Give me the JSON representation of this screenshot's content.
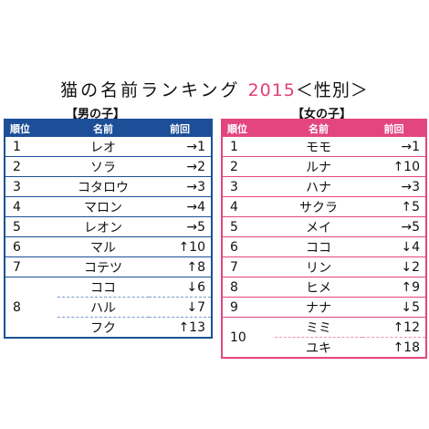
{
  "title": {
    "main": "猫の名前ランキング",
    "year": "2015",
    "sub": "＜性別＞"
  },
  "boys": {
    "label": "【男の子】",
    "headers": {
      "rank": "順位",
      "name": "名前",
      "prev": "前回"
    },
    "rows": [
      {
        "rank": "1",
        "name": "レオ",
        "prev": "→1"
      },
      {
        "rank": "2",
        "name": "ソラ",
        "prev": "→2"
      },
      {
        "rank": "3",
        "name": "コタロウ",
        "prev": "→3"
      },
      {
        "rank": "4",
        "name": "マロン",
        "prev": "→4"
      },
      {
        "rank": "5",
        "name": "レオン",
        "prev": "→5"
      },
      {
        "rank": "6",
        "name": "マル",
        "prev": "↑10"
      },
      {
        "rank": "7",
        "name": "コテツ",
        "prev": "↑8"
      },
      {
        "rank": "8",
        "name": "ココ",
        "prev": "↓6"
      },
      {
        "rank": "8",
        "name": "ハル",
        "prev": "↓7"
      },
      {
        "rank": "8",
        "name": "フク",
        "prev": "↑13"
      }
    ]
  },
  "girls": {
    "label": "【女の子】",
    "headers": {
      "rank": "順位",
      "name": "名前",
      "prev": "前回"
    },
    "rows": [
      {
        "rank": "1",
        "name": "モモ",
        "prev": "→1"
      },
      {
        "rank": "2",
        "name": "ルナ",
        "prev": "↑10"
      },
      {
        "rank": "3",
        "name": "ハナ",
        "prev": "→3"
      },
      {
        "rank": "4",
        "name": "サクラ",
        "prev": "↑5"
      },
      {
        "rank": "5",
        "name": "メイ",
        "prev": "→5"
      },
      {
        "rank": "6",
        "name": "ココ",
        "prev": "↓4"
      },
      {
        "rank": "7",
        "name": "リン",
        "prev": "↓2"
      },
      {
        "rank": "8",
        "name": "ヒメ",
        "prev": "↑9"
      },
      {
        "rank": "9",
        "name": "ナナ",
        "prev": "↓5"
      },
      {
        "rank": "10",
        "name": "ミミ",
        "prev": "↑12"
      },
      {
        "rank": "10",
        "name": "ユキ",
        "prev": "↑18"
      }
    ]
  }
}
